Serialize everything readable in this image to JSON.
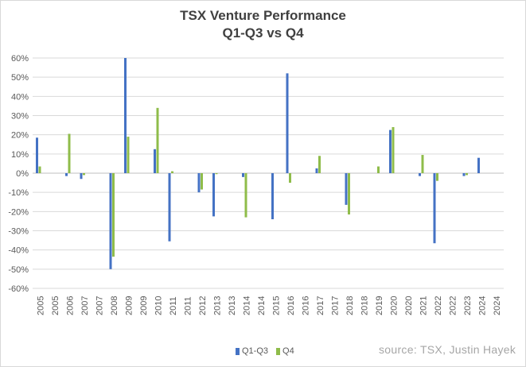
{
  "chart_data": {
    "type": "bar",
    "title": "TSX Venture Performance",
    "subtitle": "Q1-Q3 vs Q4",
    "categories": [
      "2005",
      "2005",
      "2006",
      "2007",
      "2007",
      "2008",
      "2009",
      "2009",
      "2010",
      "2011",
      "2011",
      "2012",
      "2013",
      "2013",
      "2014",
      "2014",
      "2015",
      "2016",
      "2016",
      "2017",
      "2017",
      "2018",
      "2018",
      "2019",
      "2020",
      "2020",
      "2021",
      "2022",
      "2022",
      "2023",
      "2024",
      "2024"
    ],
    "series": [
      {
        "name": "Q1-Q3",
        "color": "#4472c4",
        "values": [
          18.5,
          0,
          -1.5,
          -3,
          0,
          -50,
          60,
          0,
          12.5,
          -35.5,
          0,
          -10,
          -22.5,
          0,
          -2,
          0,
          -24,
          52,
          0,
          2.5,
          0,
          -16.5,
          0,
          0,
          22.5,
          0,
          -1.5,
          -36.5,
          0,
          -1.5,
          8,
          0
        ]
      },
      {
        "name": "Q4",
        "color": "#8fbc4a",
        "values": [
          3.5,
          0,
          20.5,
          -1,
          0,
          -43.5,
          19,
          0,
          34,
          1,
          0,
          -8.5,
          -0.5,
          0,
          -23,
          0,
          0,
          -5,
          0,
          9,
          0,
          -21.5,
          0,
          3.5,
          24,
          0,
          9.5,
          -4,
          0,
          -1,
          0,
          0
        ]
      }
    ],
    "yticks": [
      "60%",
      "50%",
      "40%",
      "30%",
      "20%",
      "10%",
      "0%",
      "-10%",
      "-20%",
      "-30%",
      "-40%",
      "-50%",
      "-60%"
    ],
    "ylim": [
      -60,
      60
    ],
    "grid": true,
    "legend": "bottom",
    "source": "source: TSX, Justin Hayek"
  }
}
